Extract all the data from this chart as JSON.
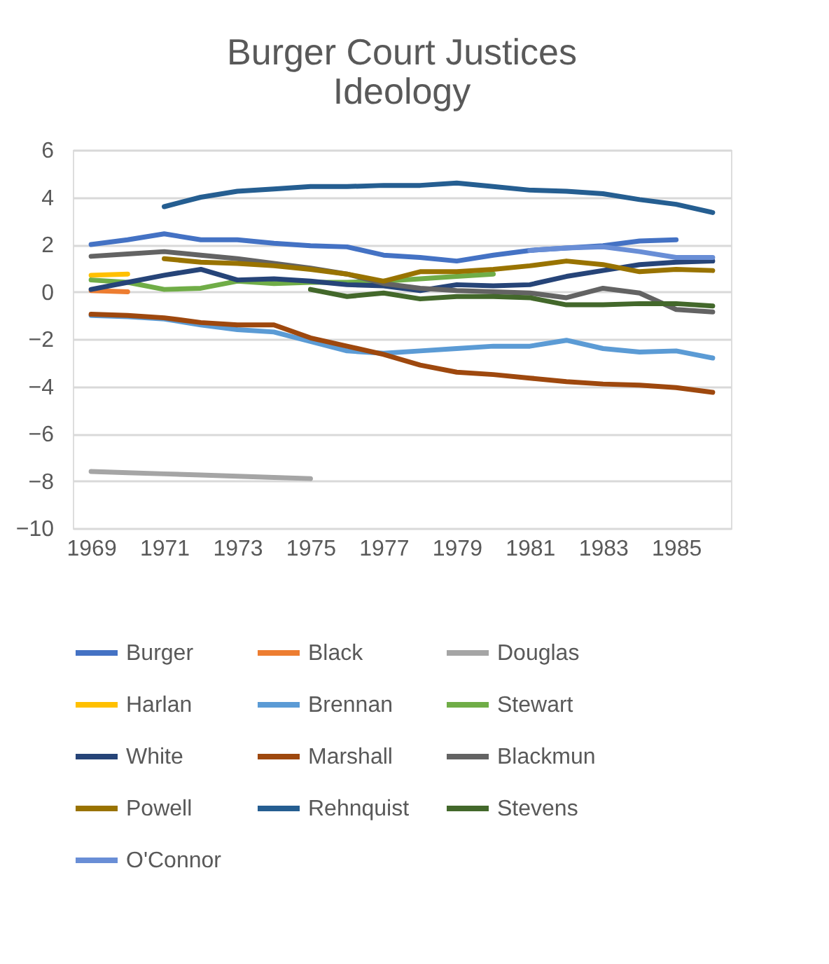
{
  "chart_data": {
    "type": "line",
    "title": "Burger Court Justices Ideology",
    "categories": [
      "1969",
      null,
      "1971",
      null,
      "1973",
      null,
      "1975",
      null,
      "1977",
      null,
      "1979",
      null,
      "1981",
      null,
      "1983",
      null,
      "1985",
      null
    ],
    "ylim": [
      -10,
      6
    ],
    "yticks": [
      -10,
      -8,
      -6,
      -4,
      -2,
      0,
      2,
      4,
      6
    ],
    "grid": "y",
    "legend": "bottom",
    "marker": "none",
    "line_style": "solid",
    "series": [
      {
        "name": "Burger",
        "color": "#4472c4",
        "values": [
          2.0,
          2.2,
          2.45,
          2.2,
          2.2,
          2.05,
          1.95,
          1.9,
          1.55,
          1.45,
          1.3,
          1.55,
          1.75,
          1.85,
          1.95,
          2.15,
          2.2,
          null
        ]
      },
      {
        "name": "Black",
        "color": "#ed7d31",
        "values": [
          0.05,
          0.0,
          null,
          null,
          null,
          null,
          null,
          null,
          null,
          null,
          null,
          null,
          null,
          null,
          null,
          null,
          null,
          null
        ]
      },
      {
        "name": "Douglas",
        "color": "#a5a5a5",
        "values": [
          -7.6,
          -7.65,
          -7.7,
          -7.75,
          -7.8,
          -7.85,
          -7.9,
          null,
          null,
          null,
          null,
          null,
          null,
          null,
          null,
          null,
          null,
          null
        ]
      },
      {
        "name": "Harlan",
        "color": "#ffc000",
        "values": [
          0.7,
          0.75,
          null,
          null,
          null,
          null,
          null,
          null,
          null,
          null,
          null,
          null,
          null,
          null,
          null,
          null,
          null,
          null
        ]
      },
      {
        "name": "Brennan",
        "color": "#5b9bd5",
        "values": [
          -1.0,
          -1.05,
          -1.15,
          -1.4,
          -1.6,
          -1.7,
          -2.1,
          -2.5,
          -2.6,
          -2.5,
          -2.4,
          -2.3,
          -2.3,
          -2.05,
          -2.4,
          -2.55,
          -2.5,
          -2.8
        ]
      },
      {
        "name": "Stewart",
        "color": "#70ad47",
        "values": [
          0.5,
          0.4,
          0.1,
          0.15,
          0.45,
          0.35,
          0.4,
          0.4,
          0.45,
          0.55,
          0.65,
          0.75,
          null,
          null,
          null,
          null,
          null,
          null
        ]
      },
      {
        "name": "White",
        "color": "#264478",
        "values": [
          0.1,
          0.4,
          0.7,
          0.95,
          0.5,
          0.55,
          0.45,
          0.3,
          0.25,
          0.05,
          0.3,
          0.25,
          0.3,
          0.65,
          0.9,
          1.15,
          1.25,
          1.3
        ]
      },
      {
        "name": "Marshall",
        "color": "#9e480e",
        "values": [
          -0.95,
          -1.0,
          -1.1,
          -1.3,
          -1.4,
          -1.4,
          -1.95,
          -2.3,
          -2.65,
          -3.1,
          -3.4,
          -3.5,
          -3.65,
          -3.8,
          -3.9,
          -3.95,
          -4.05,
          -4.25
        ]
      },
      {
        "name": "Blackmun",
        "color": "#636363",
        "values": [
          1.5,
          1.6,
          1.7,
          1.55,
          1.4,
          1.2,
          1.0,
          0.75,
          0.35,
          0.15,
          0.05,
          0.0,
          -0.05,
          -0.25,
          0.15,
          -0.05,
          -0.75,
          -0.85
        ]
      },
      {
        "name": "Powell",
        "color": "#997300",
        "values": [
          null,
          null,
          1.4,
          1.25,
          1.2,
          1.1,
          0.95,
          0.75,
          0.45,
          0.85,
          0.85,
          0.95,
          1.1,
          1.3,
          1.15,
          0.85,
          0.95,
          0.9
        ]
      },
      {
        "name": "Rehnquist",
        "color": "#255e91",
        "values": [
          null,
          null,
          3.6,
          4.0,
          4.25,
          4.35,
          4.45,
          4.45,
          4.5,
          4.5,
          4.6,
          4.45,
          4.3,
          4.25,
          4.15,
          3.9,
          3.7,
          3.35
        ]
      },
      {
        "name": "Stevens",
        "color": "#43682b",
        "values": [
          null,
          null,
          null,
          null,
          null,
          null,
          0.1,
          -0.2,
          -0.05,
          -0.3,
          -0.2,
          -0.2,
          -0.25,
          -0.55,
          -0.55,
          -0.5,
          -0.5,
          -0.6
        ]
      },
      {
        "name": "O'Connor",
        "color": "#698ed6",
        "values": [
          null,
          null,
          null,
          null,
          null,
          null,
          null,
          null,
          null,
          null,
          null,
          null,
          1.75,
          1.85,
          1.9,
          1.7,
          1.45,
          1.45
        ]
      }
    ]
  }
}
